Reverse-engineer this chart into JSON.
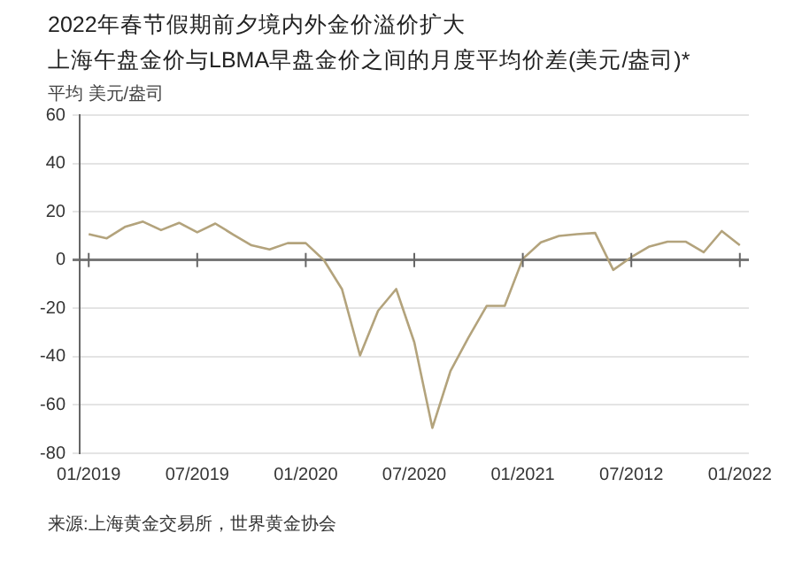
{
  "chart_data": {
    "type": "line",
    "title": "2022年春节假期前夕境内外金价溢价扩大",
    "subtitle": "上海午盘金价与LBMA早盘金价之间的月度平均价差(美元/盎司)*",
    "ylabel": "平均 美元/盎司",
    "annotations": [
      "来源:上海黄金交易所，世界黄金协会"
    ],
    "categories": [
      "01/2019",
      null,
      null,
      null,
      null,
      null,
      "07/2019",
      null,
      null,
      null,
      null,
      null,
      "01/2020",
      null,
      null,
      null,
      null,
      null,
      "07/2020",
      null,
      null,
      null,
      null,
      null,
      "01/2021",
      null,
      null,
      null,
      null,
      null,
      "07/2012",
      null,
      null,
      null,
      null,
      null,
      "01/2022"
    ],
    "values": [
      10.7,
      9,
      13.7,
      15.9,
      12.4,
      15.4,
      11.5,
      15.1,
      10.5,
      6.1,
      4.4,
      7,
      7,
      0,
      -12,
      -39.5,
      -21,
      -12,
      -34,
      -69.5,
      -46,
      -32,
      -19,
      -19,
      0.5,
      7.3,
      10,
      10.7,
      11.2,
      -4.1,
      1.2,
      5.6,
      7.6,
      7.6,
      3.2,
      12,
      6.1
    ],
    "color": "#b3a37c",
    "marker": "none",
    "grid": "y",
    "ylim": [
      -80,
      60
    ],
    "yticks": [
      -80,
      -60,
      -40,
      -20,
      0,
      20,
      40,
      60
    ]
  }
}
